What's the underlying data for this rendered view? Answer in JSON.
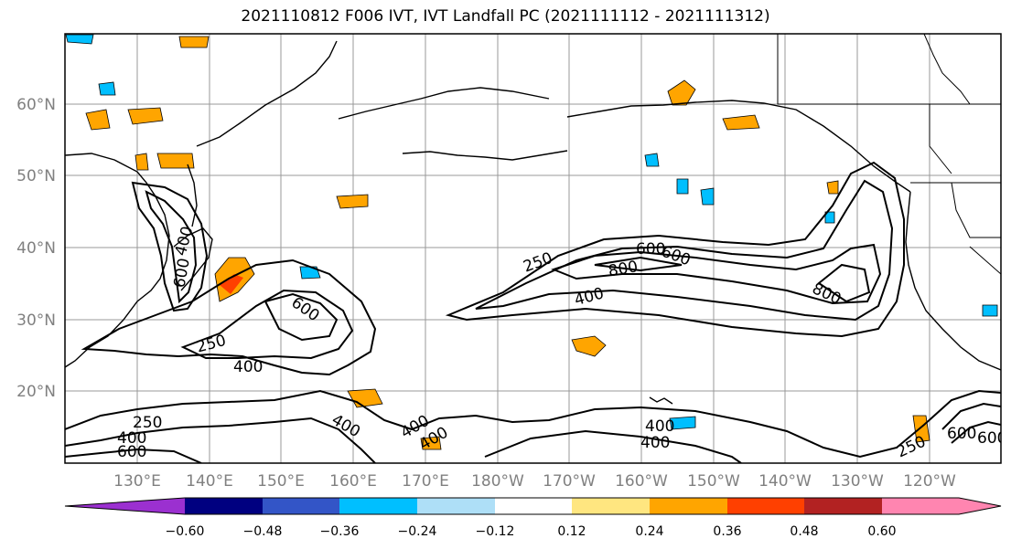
{
  "title": "2021110812 F006 IVT, IVT Landfall PC (2021111112 - 2021111312)",
  "map": {
    "lat_labels": [
      "60°N",
      "50°N",
      "40°N",
      "30°N",
      "20°N"
    ],
    "lon_labels": [
      "130°E",
      "140°E",
      "150°E",
      "160°E",
      "170°E",
      "180°W",
      "170°W",
      "160°W",
      "150°W",
      "140°W",
      "130°W",
      "120°W"
    ],
    "contour_labels": [
      "400",
      "600",
      "250",
      "400",
      "600",
      "250",
      "400",
      "600",
      "800",
      "600",
      "400",
      "800",
      "250",
      "400",
      "400",
      "400",
      "400",
      "400",
      "600",
      "250",
      "600",
      "600"
    ],
    "colors": {
      "land_line": "#000000",
      "grid": "#999999",
      "tick_label": "#808080"
    }
  },
  "colorbar": {
    "colors": [
      "#9b30d0",
      "#000080",
      "#3355c7",
      "#00bfff",
      "#aedff7",
      "#ffffff",
      "#ffe680",
      "#ffa500",
      "#ff4000",
      "#b22222",
      "#ff85b0"
    ],
    "tick_labels": [
      "−0.60",
      "−0.48",
      "−0.36",
      "−0.24",
      "−0.12",
      "0.12",
      "0.24",
      "0.36",
      "0.48",
      "0.60"
    ]
  }
}
